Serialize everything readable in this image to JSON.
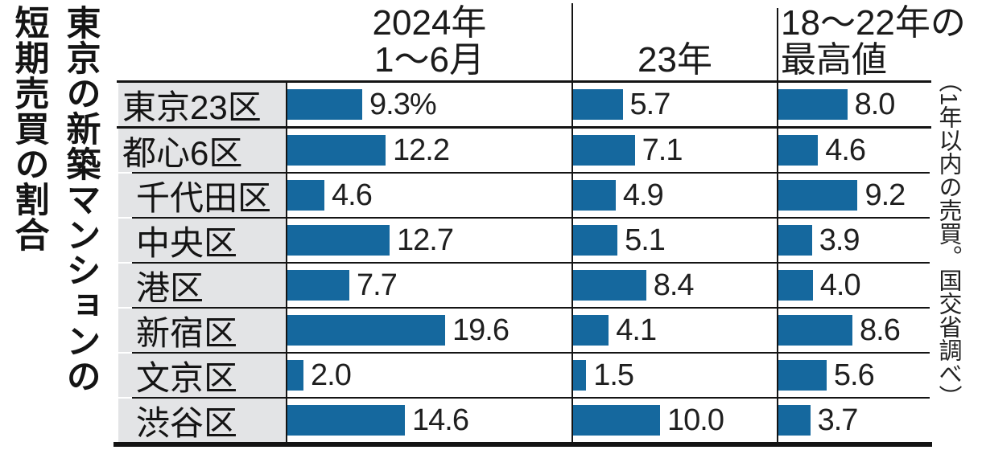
{
  "title": {
    "text": "東京の新築マンションの短期売買の割合",
    "line1": "東京の新築マンションの",
    "line2": "短期売買の割合"
  },
  "source_note": "（1年以内の売買。国交省調べ）",
  "header": {
    "col1_line1": "2024年",
    "col1_line2": "1〜6月",
    "col2": "23年",
    "col3_line1": "18〜22年の",
    "col3_line2": "最高値"
  },
  "rows": [
    {
      "label": "東京23区",
      "display": [
        "9.3%",
        "5.7",
        "8.0"
      ]
    },
    {
      "label": "都心6区",
      "display": [
        "12.2",
        "7.1",
        "4.6"
      ]
    },
    {
      "label": "千代田区",
      "display": [
        "4.6",
        "4.9",
        "9.2"
      ]
    },
    {
      "label": "中央区",
      "display": [
        "12.7",
        "5.1",
        "3.9"
      ]
    },
    {
      "label": "港区",
      "display": [
        "7.7",
        "8.4",
        "4.0"
      ]
    },
    {
      "label": "新宿区",
      "display": [
        "19.6",
        "4.1",
        "8.6"
      ]
    },
    {
      "label": "文京区",
      "display": [
        "2.0",
        "1.5",
        "5.6"
      ]
    },
    {
      "label": "渋谷区",
      "display": [
        "14.6",
        "10.0",
        "3.7"
      ]
    }
  ],
  "chart_data": {
    "type": "bar",
    "orientation": "horizontal",
    "title": "東京の新築マンションの短期売買の割合",
    "categories": [
      "東京23区",
      "都心6区",
      "千代田区",
      "中央区",
      "港区",
      "新宿区",
      "文京区",
      "渋谷区"
    ],
    "series": [
      {
        "name": "2024年1〜6月",
        "values": [
          9.3,
          12.2,
          4.6,
          12.7,
          7.7,
          19.6,
          2.0,
          14.6
        ]
      },
      {
        "name": "23年",
        "values": [
          5.7,
          7.1,
          4.9,
          5.1,
          8.4,
          4.1,
          1.5,
          10.0
        ]
      },
      {
        "name": "18〜22年の最高値",
        "values": [
          8.0,
          4.6,
          9.2,
          3.9,
          4.0,
          8.6,
          5.6,
          3.7
        ]
      }
    ],
    "unit": "%",
    "xlim": [
      0,
      22
    ],
    "grid": false,
    "legend_position": "column-headers",
    "note": "1年以内の売買。国交省調べ"
  },
  "colors": {
    "bar": "#15689e",
    "label_bg": "#e3e4e6",
    "line": "#141414",
    "text": "#1b1b1b"
  }
}
